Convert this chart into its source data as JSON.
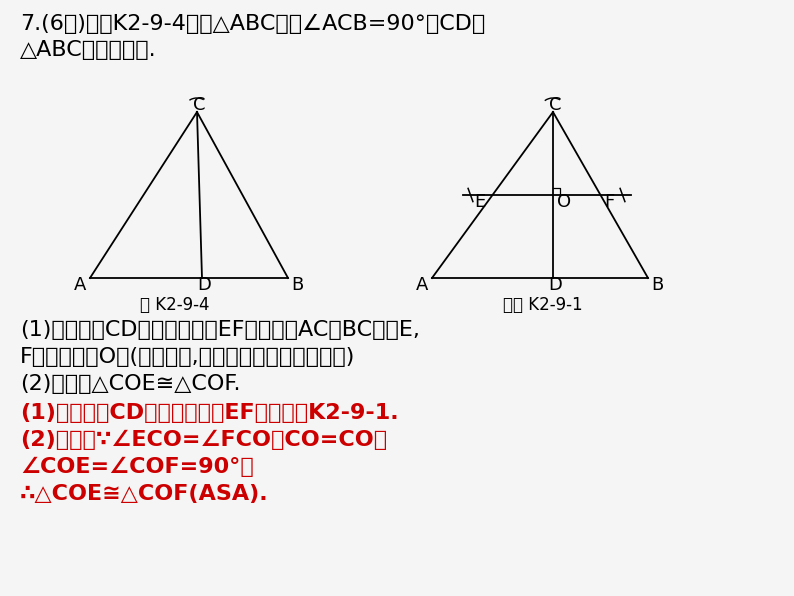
{
  "bg_color": "#f5f5f5",
  "black": "#000000",
  "red": "#cc0000",
  "fig1_caption": "图 K2-9-4",
  "fig2_caption": "答图 K2-9-1",
  "line1": "7.(6分)如图K2-9-4，在△ABC中，∠ACB=90°，CD为",
  "line2": "△ABC的角平分线.",
  "q1a": "(1)求作线段CD的垂直平分线EF，分别交AC，BC于点E,",
  "q1b": "F，垂足为点O；(尺规作图,保留作图痕迹，不写作法)",
  "q2": "(2)求证：△COE≅△COF.",
  "ans1": "(1)解：线段CD的垂直平分线EF，如答图K2-9-1.",
  "ans2": "(2)证明：∵∠ECO=∠FCO，CO=CO，",
  "ans3": "∠COE=∠COF=90°，",
  "ans4": "∴△COE≅△COF(ASA)."
}
